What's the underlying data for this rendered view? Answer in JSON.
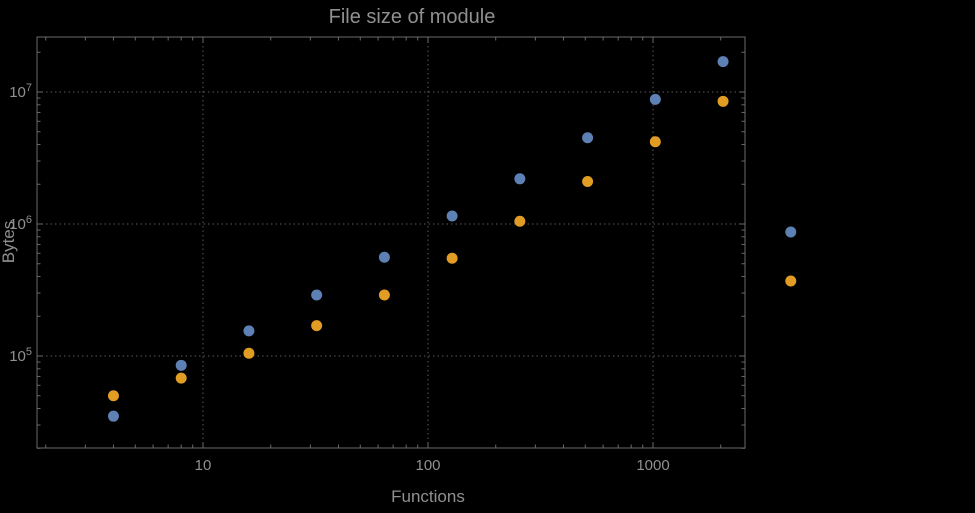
{
  "chart_data": {
    "type": "scatter",
    "title": "File size of module",
    "xlabel": "Functions",
    "ylabel": "Bytes",
    "x_scale": "log",
    "y_scale": "log",
    "grid": "dotted",
    "legend": "none",
    "x_ticks": [
      10,
      100,
      1000
    ],
    "x_tick_labels": [
      "10",
      "100",
      "1000"
    ],
    "y_ticks": [
      100000,
      1000000,
      10000000
    ],
    "y_tick_exponents": [
      "5",
      "6",
      "7"
    ],
    "x_range": [
      1.8,
      2565
    ],
    "y_range": [
      20000,
      26000000
    ],
    "x": [
      4,
      8,
      16,
      32,
      64,
      128,
      256,
      512,
      1024,
      2048,
      4096
    ],
    "series": [
      {
        "name": "series-1-blue",
        "color": "#5e81b5",
        "values": [
          35000,
          85000,
          155000,
          290000,
          560000,
          1150000,
          2200000,
          4500000,
          8800000,
          17000000,
          870000
        ]
      },
      {
        "name": "series-2-orange",
        "color": "#e19c24",
        "values": [
          50000,
          68000,
          105000,
          170000,
          290000,
          550000,
          1050000,
          2100000,
          4200000,
          8500000,
          370000
        ]
      }
    ],
    "colors": {
      "background": "#000000",
      "frame": "#6a6a6a",
      "grid": "#5a5a5a",
      "tick_text": "#909090",
      "title_text": "#909090"
    }
  }
}
